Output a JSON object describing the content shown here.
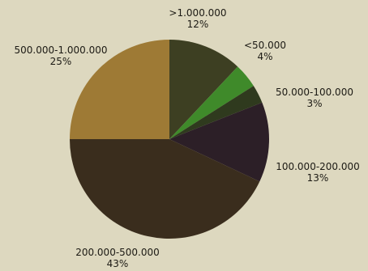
{
  "chart_data": {
    "type": "pie",
    "title": "",
    "slices": [
      {
        "label": ">1.000.000",
        "pct_text": "12%",
        "value": 12,
        "color": "#3d3f22"
      },
      {
        "label": "<50.000",
        "pct_text": "4%",
        "value": 4,
        "color": "#3f8a2a"
      },
      {
        "label": "50.000-100.000",
        "pct_text": "3%",
        "value": 3,
        "color": "#2f3a1e"
      },
      {
        "label": "100.000-200.000",
        "pct_text": "13%",
        "value": 13,
        "color": "#2c1f27"
      },
      {
        "label": "200.000-500.000",
        "pct_text": "43%",
        "value": 43,
        "color": "#3a2d1d"
      },
      {
        "label": "500.000-1.000.000",
        "pct_text": "25%",
        "value": 25,
        "color": "#9e7a35"
      }
    ]
  }
}
